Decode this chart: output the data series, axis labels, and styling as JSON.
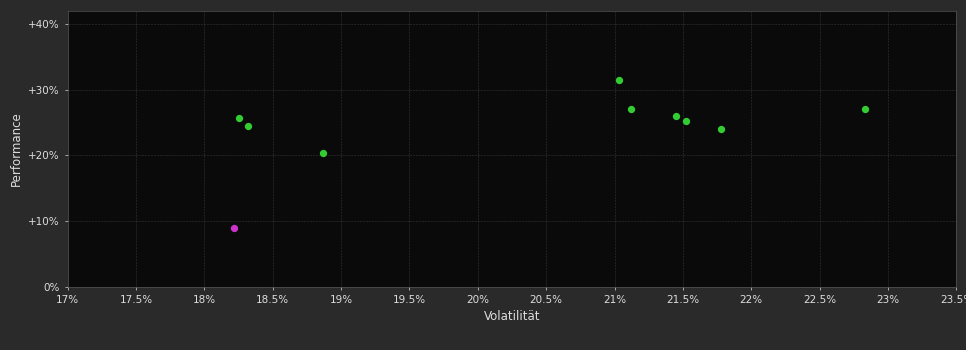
{
  "background_color": "#2a2a2a",
  "plot_bg_color": "#0a0a0a",
  "grid_color": "#404040",
  "text_color": "#dddddd",
  "xlabel": "Volatilität",
  "ylabel": "Performance",
  "xlim": [
    0.17,
    0.235
  ],
  "ylim": [
    0.0,
    0.42
  ],
  "xticks": [
    0.17,
    0.175,
    0.18,
    0.185,
    0.19,
    0.195,
    0.2,
    0.205,
    0.21,
    0.215,
    0.22,
    0.225,
    0.23,
    0.235
  ],
  "xtick_labels": [
    "17%",
    "17.5%",
    "18%",
    "18.5%",
    "19%",
    "19.5%",
    "20%",
    "20.5%",
    "21%",
    "21.5%",
    "22%",
    "22.5%",
    "23%",
    "23.5%"
  ],
  "yticks": [
    0.0,
    0.1,
    0.2,
    0.3,
    0.4
  ],
  "ytick_labels": [
    "0%",
    "+10%",
    "+20%",
    "+30%",
    "+40%"
  ],
  "green_points": [
    [
      0.1825,
      0.257
    ],
    [
      0.1832,
      0.244
    ],
    [
      0.1887,
      0.204
    ],
    [
      0.2103,
      0.315
    ],
    [
      0.2112,
      0.271
    ],
    [
      0.2145,
      0.259
    ],
    [
      0.2152,
      0.252
    ],
    [
      0.2178,
      0.24
    ],
    [
      0.2283,
      0.27
    ]
  ],
  "magenta_points": [
    [
      0.1822,
      0.09
    ]
  ],
  "point_size": 18,
  "green_color": "#33cc33",
  "magenta_color": "#cc33cc"
}
